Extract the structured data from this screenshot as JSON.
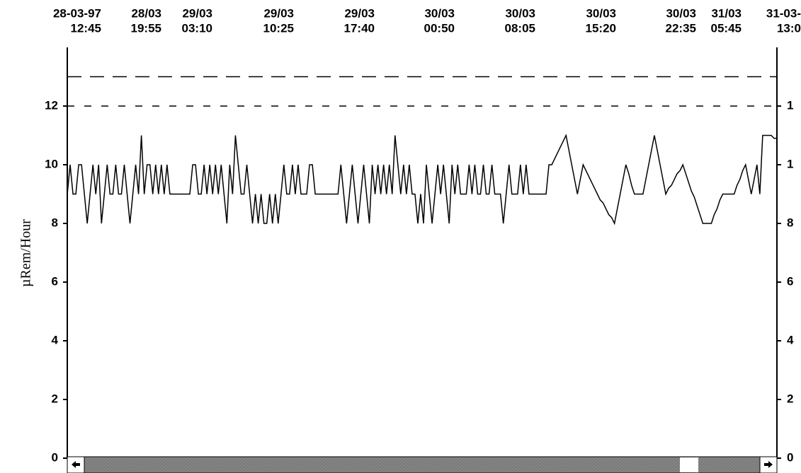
{
  "chart_data": {
    "type": "line",
    "ylabel": "µRem/Hour",
    "xticks": [
      [
        "28-03-97",
        "12:45"
      ],
      [
        "28/03",
        "19:55"
      ],
      [
        "29/03",
        "03:10"
      ],
      [
        "29/03",
        "10:25"
      ],
      [
        "29/03",
        "17:40"
      ],
      [
        "30/03",
        "00:50"
      ],
      [
        "30/03",
        "08:05"
      ],
      [
        "30/03",
        "15:20"
      ],
      [
        "30/03",
        "22:35"
      ],
      [
        "31/03",
        "05:45"
      ],
      [
        "31-03-",
        "13:0"
      ]
    ],
    "ylim": [
      0,
      14
    ],
    "yticks": [
      0,
      2,
      4,
      6,
      8,
      10,
      12
    ],
    "y2lim": [
      0,
      14
    ],
    "y2ticks": [
      0,
      2,
      4,
      6,
      8,
      {
        "value": 10,
        "label": "1"
      },
      {
        "value": 12,
        "label": "1"
      }
    ],
    "reference_lines": [
      {
        "value": 13,
        "style": "long-dash"
      },
      {
        "value": 12,
        "style": "short-dash"
      }
    ],
    "color": "#000000",
    "values": [
      9,
      10,
      9,
      9,
      10,
      10,
      9,
      8,
      9,
      10,
      9,
      10,
      8,
      9,
      10,
      9,
      9,
      10,
      9,
      9,
      10,
      9,
      8,
      9,
      10,
      9,
      11,
      9,
      10,
      10,
      9,
      10,
      9,
      10,
      9,
      10,
      9,
      9,
      9,
      9,
      9,
      9,
      9,
      9,
      10,
      10,
      9,
      9,
      10,
      9,
      10,
      9,
      10,
      9,
      10,
      9,
      8,
      10,
      9,
      11,
      10,
      9,
      9,
      10,
      9,
      8,
      9,
      8,
      9,
      8,
      8,
      9,
      8,
      9,
      8,
      9,
      10,
      9,
      9,
      10,
      9,
      10,
      9,
      9,
      9,
      10,
      10,
      9,
      9,
      9,
      9,
      9,
      9,
      9,
      9,
      9,
      10,
      9,
      8,
      9,
      10,
      9,
      8,
      9,
      10,
      9,
      8,
      10,
      9,
      10,
      9,
      10,
      9,
      10,
      9,
      11,
      10,
      9,
      10,
      9,
      10,
      9,
      9,
      8,
      9,
      8,
      10,
      9,
      8,
      9,
      10,
      9,
      10,
      9,
      8,
      10,
      9,
      10,
      9,
      9,
      9,
      10,
      9,
      10,
      9,
      9,
      10,
      9,
      9,
      10,
      9,
      9,
      9,
      8,
      9,
      10,
      9,
      9,
      9,
      10,
      9,
      10,
      9,
      9,
      9,
      9,
      9,
      9,
      9,
      10,
      10,
      10.2,
      10.4,
      10.6,
      10.8,
      11,
      10.5,
      10,
      9.5,
      9,
      9.5,
      10,
      9.8,
      9.6,
      9.4,
      9.2,
      9,
      8.8,
      8.7,
      8.5,
      8.3,
      8.2,
      8,
      8.5,
      9,
      9.5,
      10,
      9.7,
      9.3,
      9,
      9,
      9,
      9,
      9.5,
      10,
      10.5,
      11,
      10.5,
      10,
      9.5,
      9,
      9.2,
      9.3,
      9.5,
      9.7,
      9.8,
      10,
      9.7,
      9.4,
      9.1,
      8.9,
      8.6,
      8.3,
      8,
      8,
      8,
      8,
      8.3,
      8.5,
      8.8,
      9,
      9,
      9,
      9,
      9,
      9.3,
      9.5,
      9.8,
      10,
      9.5,
      9,
      9.5,
      10,
      9,
      11,
      11,
      11,
      11,
      10.9,
      10.9
    ]
  }
}
